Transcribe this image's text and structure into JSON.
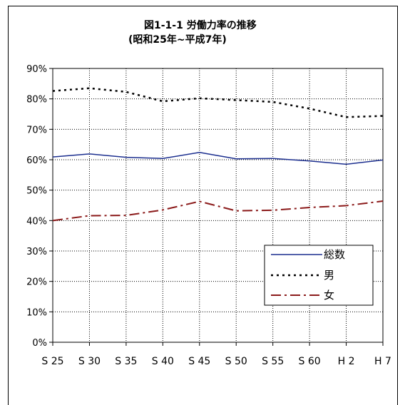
{
  "chart_data": {
    "type": "line",
    "title": "図1-1-1 労働力率の推移",
    "subtitle": "(昭和25年~平成7年)",
    "categories": [
      "S 25",
      "S 30",
      "S 35",
      "S 40",
      "S 45",
      "S 50",
      "S 55",
      "S 60",
      "H 2",
      "H 7"
    ],
    "yticks": [
      "0%",
      "10%",
      "20%",
      "30%",
      "40%",
      "50%",
      "60%",
      "70%",
      "80%",
      "90%"
    ],
    "ylim": [
      0,
      90
    ],
    "grid": true,
    "legend_position": "bottom-right",
    "series": [
      {
        "name": "総数",
        "values": [
          60.9,
          61.9,
          60.8,
          60.4,
          62.4,
          60.3,
          60.4,
          59.6,
          58.5,
          59.9
        ],
        "color": "#1c2f8f",
        "dash": "solid"
      },
      {
        "name": "男",
        "values": [
          82.6,
          83.5,
          82.3,
          79.2,
          80.2,
          79.6,
          79.0,
          76.8,
          74.0,
          74.4
        ],
        "color": "#000000",
        "dash": "dotted"
      },
      {
        "name": "女",
        "values": [
          40.0,
          41.6,
          41.7,
          43.5,
          46.3,
          43.2,
          43.4,
          44.3,
          44.9,
          46.4
        ],
        "color": "#8b1a1a",
        "dash": "dashdot"
      }
    ]
  }
}
